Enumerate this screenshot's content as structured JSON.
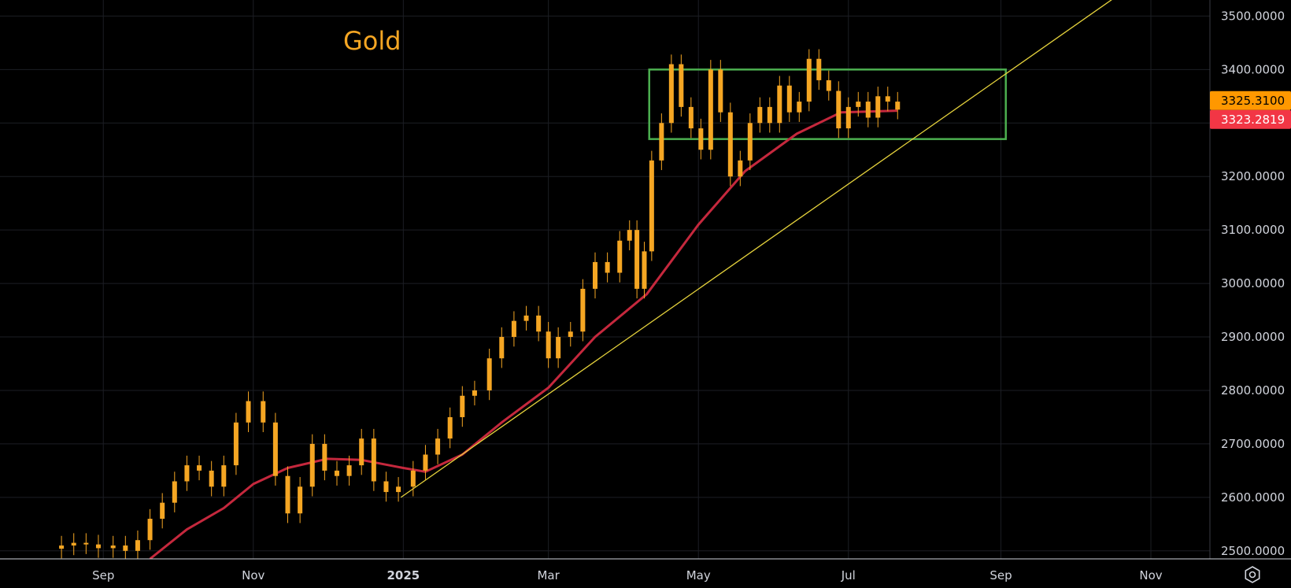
{
  "chart_data": {
    "type": "candlestick",
    "title": "Gold",
    "ylim": [
      2485,
      3530
    ],
    "y_ticks": [
      "2500.0000",
      "2600.0000",
      "2700.0000",
      "2800.0000",
      "2900.0000",
      "3000.0000",
      "3100.0000",
      "3200.0000",
      "3300.0000",
      "3400.0000",
      "3500.0000"
    ],
    "x_ticks": [
      {
        "label": "Sep",
        "date": "2024-09-01",
        "bold": false
      },
      {
        "label": "Nov",
        "date": "2024-11-01",
        "bold": false
      },
      {
        "label": "2025",
        "date": "2025-01-01",
        "bold": true
      },
      {
        "label": "Mar",
        "date": "2025-03-01",
        "bold": false
      },
      {
        "label": "May",
        "date": "2025-05-01",
        "bold": false
      },
      {
        "label": "Jul",
        "date": "2025-07-01",
        "bold": false
      },
      {
        "label": "Sep",
        "date": "2025-09-01",
        "bold": false
      },
      {
        "label": "Nov",
        "date": "2025-11-01",
        "bold": false
      }
    ],
    "xlim": [
      "2024-07-21",
      "2025-11-25"
    ],
    "grid": true,
    "last_price": {
      "value": 3325.31,
      "label": "3325.3100",
      "color": "#ff9800"
    },
    "ma_value": {
      "value": 3323.28,
      "label": "3323.2819",
      "color": "#f23645"
    },
    "candle_color": "#f5a623",
    "ma_color": "#c5283d",
    "trend_color": "#e5d23c",
    "range_box_color": "#4caf50",
    "candles": [
      {
        "date": "2024-08-15",
        "close": 2510
      },
      {
        "date": "2024-08-20",
        "close": 2515
      },
      {
        "date": "2024-08-25",
        "close": 2512
      },
      {
        "date": "2024-08-30",
        "close": 2505
      },
      {
        "date": "2024-09-05",
        "close": 2510
      },
      {
        "date": "2024-09-10",
        "close": 2500
      },
      {
        "date": "2024-09-15",
        "close": 2520
      },
      {
        "date": "2024-09-20",
        "close": 2560
      },
      {
        "date": "2024-09-25",
        "close": 2590
      },
      {
        "date": "2024-09-30",
        "close": 2630
      },
      {
        "date": "2024-10-05",
        "close": 2660
      },
      {
        "date": "2024-10-10",
        "close": 2650
      },
      {
        "date": "2024-10-15",
        "close": 2620
      },
      {
        "date": "2024-10-20",
        "close": 2660
      },
      {
        "date": "2024-10-25",
        "close": 2740
      },
      {
        "date": "2024-10-30",
        "close": 2780
      },
      {
        "date": "2024-11-05",
        "close": 2740
      },
      {
        "date": "2024-11-10",
        "close": 2640
      },
      {
        "date": "2024-11-15",
        "close": 2570
      },
      {
        "date": "2024-11-20",
        "close": 2620
      },
      {
        "date": "2024-11-25",
        "close": 2700
      },
      {
        "date": "2024-11-30",
        "close": 2650
      },
      {
        "date": "2024-12-05",
        "close": 2640
      },
      {
        "date": "2024-12-10",
        "close": 2660
      },
      {
        "date": "2024-12-15",
        "close": 2710
      },
      {
        "date": "2024-12-20",
        "close": 2630
      },
      {
        "date": "2024-12-25",
        "close": 2610
      },
      {
        "date": "2024-12-30",
        "close": 2620
      },
      {
        "date": "2025-01-05",
        "close": 2650
      },
      {
        "date": "2025-01-10",
        "close": 2680
      },
      {
        "date": "2025-01-15",
        "close": 2710
      },
      {
        "date": "2025-01-20",
        "close": 2750
      },
      {
        "date": "2025-01-25",
        "close": 2790
      },
      {
        "date": "2025-01-30",
        "close": 2800
      },
      {
        "date": "2025-02-05",
        "close": 2860
      },
      {
        "date": "2025-02-10",
        "close": 2900
      },
      {
        "date": "2025-02-15",
        "close": 2930
      },
      {
        "date": "2025-02-20",
        "close": 2940
      },
      {
        "date": "2025-02-25",
        "close": 2910
      },
      {
        "date": "2025-03-01",
        "close": 2860
      },
      {
        "date": "2025-03-05",
        "close": 2900
      },
      {
        "date": "2025-03-10",
        "close": 2910
      },
      {
        "date": "2025-03-15",
        "close": 2990
      },
      {
        "date": "2025-03-20",
        "close": 3040
      },
      {
        "date": "2025-03-25",
        "close": 3020
      },
      {
        "date": "2025-03-30",
        "close": 3080
      },
      {
        "date": "2025-04-03",
        "close": 3100
      },
      {
        "date": "2025-04-06",
        "close": 2990
      },
      {
        "date": "2025-04-09",
        "close": 3060
      },
      {
        "date": "2025-04-12",
        "close": 3230
      },
      {
        "date": "2025-04-16",
        "close": 3300
      },
      {
        "date": "2025-04-20",
        "close": 3410
      },
      {
        "date": "2025-04-24",
        "close": 3330
      },
      {
        "date": "2025-04-28",
        "close": 3290
      },
      {
        "date": "2025-05-02",
        "close": 3250
      },
      {
        "date": "2025-05-06",
        "close": 3400
      },
      {
        "date": "2025-05-10",
        "close": 3320
      },
      {
        "date": "2025-05-14",
        "close": 3200
      },
      {
        "date": "2025-05-18",
        "close": 3230
      },
      {
        "date": "2025-05-22",
        "close": 3300
      },
      {
        "date": "2025-05-26",
        "close": 3330
      },
      {
        "date": "2025-05-30",
        "close": 3300
      },
      {
        "date": "2025-06-03",
        "close": 3370
      },
      {
        "date": "2025-06-07",
        "close": 3320
      },
      {
        "date": "2025-06-11",
        "close": 3340
      },
      {
        "date": "2025-06-15",
        "close": 3420
      },
      {
        "date": "2025-06-19",
        "close": 3380
      },
      {
        "date": "2025-06-23",
        "close": 3360
      },
      {
        "date": "2025-06-27",
        "close": 3290
      },
      {
        "date": "2025-07-01",
        "close": 3330
      },
      {
        "date": "2025-07-05",
        "close": 3340
      },
      {
        "date": "2025-07-09",
        "close": 3310
      },
      {
        "date": "2025-07-13",
        "close": 3350
      },
      {
        "date": "2025-07-17",
        "close": 3340
      },
      {
        "date": "2025-07-21",
        "close": 3325
      }
    ],
    "moving_average": [
      {
        "date": "2024-09-20",
        "value": 2485
      },
      {
        "date": "2024-10-05",
        "value": 2540
      },
      {
        "date": "2024-10-20",
        "value": 2580
      },
      {
        "date": "2024-11-01",
        "value": 2625
      },
      {
        "date": "2024-11-15",
        "value": 2655
      },
      {
        "date": "2024-12-01",
        "value": 2672
      },
      {
        "date": "2024-12-15",
        "value": 2670
      },
      {
        "date": "2025-01-01",
        "value": 2655
      },
      {
        "date": "2025-01-10",
        "value": 2648
      },
      {
        "date": "2025-01-25",
        "value": 2680
      },
      {
        "date": "2025-02-10",
        "value": 2740
      },
      {
        "date": "2025-03-01",
        "value": 2805
      },
      {
        "date": "2025-03-20",
        "value": 2900
      },
      {
        "date": "2025-04-10",
        "value": 2980
      },
      {
        "date": "2025-05-01",
        "value": 3110
      },
      {
        "date": "2025-05-20",
        "value": 3210
      },
      {
        "date": "2025-06-10",
        "value": 3280
      },
      {
        "date": "2025-06-28",
        "value": 3320
      },
      {
        "date": "2025-07-21",
        "value": 3323
      }
    ],
    "trendline": [
      {
        "date": "2024-12-31",
        "value": 2600
      },
      {
        "date": "2025-10-19",
        "value": 3540
      }
    ],
    "range_box": {
      "x0": "2025-04-11",
      "x1": "2025-09-03",
      "y0": 3270,
      "y1": 3400
    }
  }
}
